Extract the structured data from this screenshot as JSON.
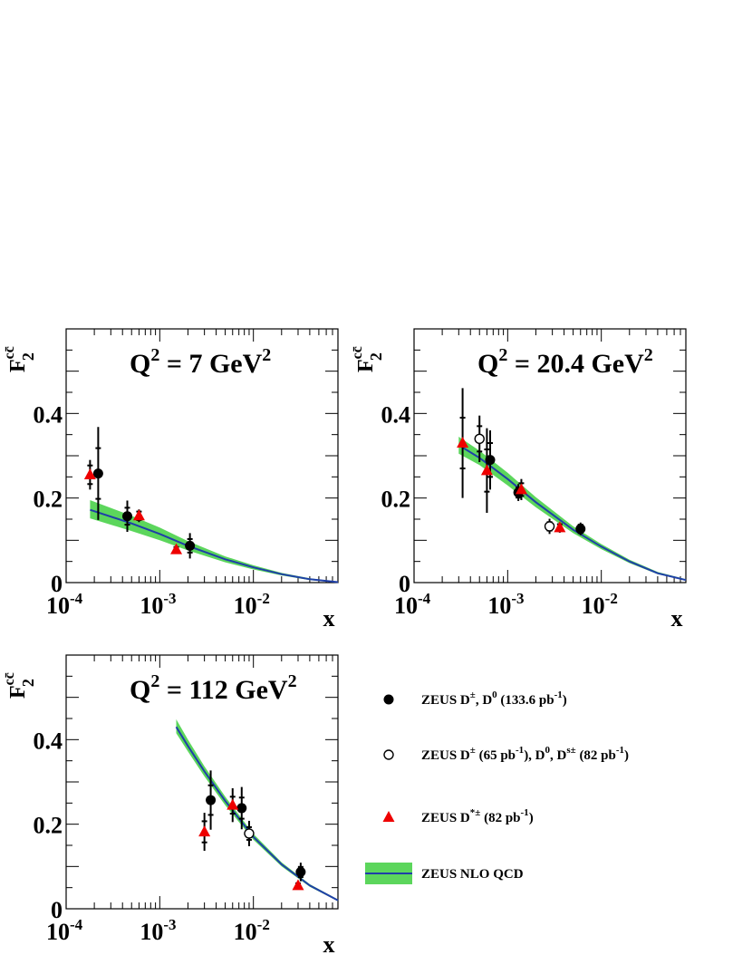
{
  "chart_data": [
    {
      "type": "scatter",
      "panel": "q2-7",
      "title": "Q² = 7 GeV²",
      "title_parts": [
        "Q",
        "2",
        " = 7 GeV",
        "2"
      ],
      "xlabel": "x",
      "ylabel": {
        "base": "F",
        "sub": "2",
        "sup": "cc̄"
      },
      "x_scale": "log",
      "xlim": [
        0.0001,
        0.08
      ],
      "ylim": [
        0,
        0.6
      ],
      "xticks": [
        {
          "base": "10",
          "exp": "-4",
          "value": 0.0001
        },
        {
          "base": "10",
          "exp": "-3",
          "value": 0.001
        },
        {
          "base": "10",
          "exp": "-2",
          "value": 0.01
        }
      ],
      "yticks": [
        {
          "label": "0",
          "value": 0
        },
        {
          "label": "0.2",
          "value": 0.2
        },
        {
          "label": "0.4",
          "value": 0.4
        }
      ],
      "series": [
        {
          "name": "ZEUS D±, D0 (133.6 pb-1)",
          "marker": "filled-circle",
          "points": [
            {
              "x": 0.00022,
              "y": 0.258,
              "err_stat": 0.06,
              "err_tot": 0.11
            },
            {
              "x": 0.00045,
              "y": 0.157,
              "err_stat": 0.02,
              "err_tot": 0.037
            },
            {
              "x": 0.0021,
              "y": 0.087,
              "err_stat": 0.016,
              "err_tot": 0.03
            }
          ]
        },
        {
          "name": "ZEUS D*± (82 pb-1)",
          "marker": "red-triangle",
          "points": [
            {
              "x": 0.00018,
              "y": 0.255,
              "err_stat": 0.022,
              "err_tot": 0.035
            },
            {
              "x": 0.0006,
              "y": 0.158,
              "err_stat": 0.01,
              "err_tot": 0.015
            },
            {
              "x": 0.0015,
              "y": 0.078,
              "err_stat": 0.006,
              "err_tot": 0.01
            }
          ]
        }
      ],
      "curve": {
        "name": "ZEUS NLO QCD",
        "xmin": 0.00018,
        "xmax": 0.08,
        "points": [
          {
            "x": 0.00018,
            "y": 0.172,
            "lo": 0.152,
            "hi": 0.195
          },
          {
            "x": 0.0005,
            "y": 0.14,
            "lo": 0.122,
            "hi": 0.158
          },
          {
            "x": 0.001,
            "y": 0.115,
            "lo": 0.1,
            "hi": 0.13
          },
          {
            "x": 0.002,
            "y": 0.087,
            "lo": 0.076,
            "hi": 0.098
          },
          {
            "x": 0.005,
            "y": 0.055,
            "lo": 0.048,
            "hi": 0.062
          },
          {
            "x": 0.01,
            "y": 0.036,
            "lo": 0.031,
            "hi": 0.041
          },
          {
            "x": 0.02,
            "y": 0.02,
            "lo": 0.017,
            "hi": 0.023
          },
          {
            "x": 0.04,
            "y": 0.008,
            "lo": 0.006,
            "hi": 0.01
          },
          {
            "x": 0.08,
            "y": 0.001,
            "lo": 0.0,
            "hi": 0.002
          }
        ]
      }
    },
    {
      "type": "scatter",
      "panel": "q2-20.4",
      "title": "Q² = 20.4 GeV²",
      "title_parts": [
        "Q",
        "2",
        " = 20.4 GeV",
        "2"
      ],
      "xlabel": "x",
      "ylabel": {
        "base": "F",
        "sub": "2",
        "sup": "cc̄"
      },
      "x_scale": "log",
      "xlim": [
        0.0001,
        0.08
      ],
      "ylim": [
        0,
        0.6
      ],
      "xticks": [
        {
          "base": "10",
          "exp": "-4",
          "value": 0.0001
        },
        {
          "base": "10",
          "exp": "-3",
          "value": 0.001
        },
        {
          "base": "10",
          "exp": "-2",
          "value": 0.01
        }
      ],
      "yticks": [
        {
          "label": "0",
          "value": 0
        },
        {
          "label": "0.2",
          "value": 0.2
        },
        {
          "label": "0.4",
          "value": 0.4
        }
      ],
      "series": [
        {
          "name": "ZEUS D±, D0 (133.6 pb-1)",
          "marker": "filled-circle",
          "points": [
            {
              "x": 0.00065,
              "y": 0.29,
              "err_stat": 0.04,
              "err_tot": 0.07
            },
            {
              "x": 0.0013,
              "y": 0.213,
              "err_stat": 0.012,
              "err_tot": 0.02
            },
            {
              "x": 0.006,
              "y": 0.127,
              "err_stat": 0.01,
              "err_tot": 0.015
            }
          ]
        },
        {
          "name": "ZEUS D± (65 pb-1), D0, Ds± (82 pb-1)",
          "marker": "open-circle",
          "points": [
            {
              "x": 0.0005,
              "y": 0.34,
              "err_stat": 0.03,
              "err_tot": 0.055
            },
            {
              "x": 0.0028,
              "y": 0.133,
              "err_stat": 0.01,
              "err_tot": 0.018
            }
          ]
        },
        {
          "name": "ZEUS D*± (82 pb-1)",
          "marker": "red-triangle",
          "points": [
            {
              "x": 0.00033,
              "y": 0.33,
              "err_stat": 0.06,
              "err_tot": 0.13
            },
            {
              "x": 0.0006,
              "y": 0.265,
              "err_stat": 0.05,
              "err_tot": 0.1
            },
            {
              "x": 0.0014,
              "y": 0.22,
              "err_stat": 0.015,
              "err_tot": 0.025
            },
            {
              "x": 0.0036,
              "y": 0.13,
              "err_stat": 0.008,
              "err_tot": 0.012
            }
          ]
        }
      ],
      "curve": {
        "name": "ZEUS NLO QCD",
        "xmin": 0.0003,
        "xmax": 0.08,
        "points": [
          {
            "x": 0.0003,
            "y": 0.325,
            "lo": 0.305,
            "hi": 0.345
          },
          {
            "x": 0.0005,
            "y": 0.295,
            "lo": 0.278,
            "hi": 0.312
          },
          {
            "x": 0.001,
            "y": 0.245,
            "lo": 0.23,
            "hi": 0.26
          },
          {
            "x": 0.002,
            "y": 0.19,
            "lo": 0.178,
            "hi": 0.202
          },
          {
            "x": 0.005,
            "y": 0.125,
            "lo": 0.117,
            "hi": 0.133
          },
          {
            "x": 0.01,
            "y": 0.085,
            "lo": 0.079,
            "hi": 0.091
          },
          {
            "x": 0.02,
            "y": 0.05,
            "lo": 0.046,
            "hi": 0.054
          },
          {
            "x": 0.04,
            "y": 0.022,
            "lo": 0.02,
            "hi": 0.025
          },
          {
            "x": 0.08,
            "y": 0.006,
            "lo": 0.005,
            "hi": 0.008
          }
        ]
      }
    },
    {
      "type": "scatter",
      "panel": "q2-112",
      "title": "Q² = 112 GeV²",
      "title_parts": [
        "Q",
        "2",
        " = 112 GeV",
        "2"
      ],
      "xlabel": "x",
      "ylabel": {
        "base": "F",
        "sub": "2",
        "sup": "cc̄"
      },
      "x_scale": "log",
      "xlim": [
        0.0001,
        0.08
      ],
      "ylim": [
        0,
        0.6
      ],
      "xticks": [
        {
          "base": "10",
          "exp": "-4",
          "value": 0.0001
        },
        {
          "base": "10",
          "exp": "-3",
          "value": 0.001
        },
        {
          "base": "10",
          "exp": "-2",
          "value": 0.01
        }
      ],
      "yticks": [
        {
          "label": "0",
          "value": 0
        },
        {
          "label": "0.2",
          "value": 0.2
        },
        {
          "label": "0.4",
          "value": 0.4
        }
      ],
      "series": [
        {
          "name": "ZEUS D±, D0 (133.6 pb-1)",
          "marker": "filled-circle",
          "points": [
            {
              "x": 0.0035,
              "y": 0.257,
              "err_stat": 0.035,
              "err_tot": 0.07
            },
            {
              "x": 0.0075,
              "y": 0.238,
              "err_stat": 0.025,
              "err_tot": 0.05
            },
            {
              "x": 0.032,
              "y": 0.087,
              "err_stat": 0.012,
              "err_tot": 0.022
            }
          ]
        },
        {
          "name": "ZEUS D± (65 pb-1), D0, Ds± (82 pb-1)",
          "marker": "open-circle",
          "points": [
            {
              "x": 0.009,
              "y": 0.178,
              "err_stat": 0.015,
              "err_tot": 0.03
            }
          ]
        },
        {
          "name": "ZEUS D*± (82 pb-1)",
          "marker": "red-triangle",
          "points": [
            {
              "x": 0.003,
              "y": 0.182,
              "err_stat": 0.025,
              "err_tot": 0.045
            },
            {
              "x": 0.006,
              "y": 0.245,
              "err_stat": 0.02,
              "err_tot": 0.04
            },
            {
              "x": 0.03,
              "y": 0.055,
              "err_stat": 0.005,
              "err_tot": 0.01
            }
          ]
        }
      ],
      "curve": {
        "name": "ZEUS NLO QCD",
        "xmin": 0.0015,
        "xmax": 0.08,
        "points": [
          {
            "x": 0.0015,
            "y": 0.43,
            "lo": 0.415,
            "hi": 0.448
          },
          {
            "x": 0.002,
            "y": 0.385,
            "lo": 0.372,
            "hi": 0.4
          },
          {
            "x": 0.003,
            "y": 0.325,
            "lo": 0.313,
            "hi": 0.337
          },
          {
            "x": 0.005,
            "y": 0.255,
            "lo": 0.245,
            "hi": 0.265
          },
          {
            "x": 0.01,
            "y": 0.17,
            "lo": 0.163,
            "hi": 0.177
          },
          {
            "x": 0.02,
            "y": 0.105,
            "lo": 0.1,
            "hi": 0.11
          },
          {
            "x": 0.04,
            "y": 0.055,
            "lo": 0.052,
            "hi": 0.058
          },
          {
            "x": 0.08,
            "y": 0.02,
            "lo": 0.018,
            "hi": 0.022
          }
        ]
      }
    }
  ],
  "legend": {
    "band_color": "#5cd65c",
    "line_color": "#1f3fa8",
    "marker_color_red": "#ee0000",
    "items": [
      {
        "marker": "filled-circle",
        "label": "ZEUS D±, D0 (133.6 pb-1)",
        "parts": [
          "ZEUS D",
          "±",
          ", D",
          "0",
          " (133.6 pb",
          "-1",
          ")"
        ]
      },
      {
        "marker": "open-circle",
        "label": "ZEUS D± (65 pb-1), D0, Ds± (82 pb-1)",
        "parts": [
          "ZEUS  D",
          "±",
          " (65 pb",
          "-1",
          "), D",
          "0",
          ", D",
          "s±",
          " (82 pb",
          "-1",
          ")"
        ]
      },
      {
        "marker": "red-triangle",
        "label": "ZEUS D*± (82 pb-1)",
        "parts": [
          "ZEUS D",
          "*±",
          " (82 pb",
          "-1",
          ")"
        ]
      },
      {
        "marker": "band",
        "label": "ZEUS NLO QCD",
        "parts": [
          "ZEUS NLO QCD"
        ]
      }
    ]
  }
}
